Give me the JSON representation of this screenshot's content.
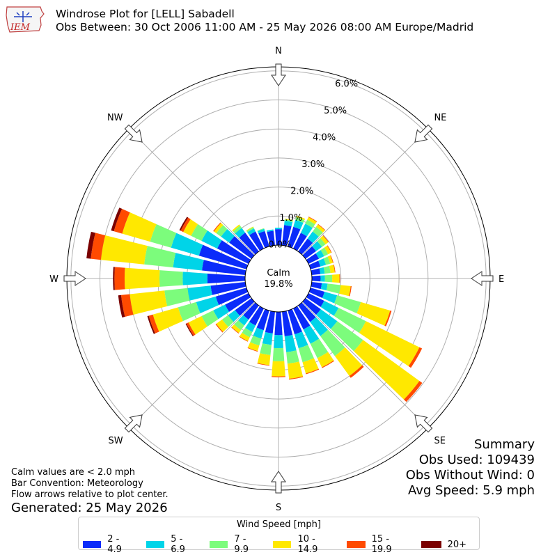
{
  "header": {
    "title_line1": "Windrose Plot for [LELL] Sabadell",
    "title_line2": "Obs Between: 30 Oct 2006 11:00 AM - 25 May 2026 08:00 AM Europe/Madrid",
    "logo_text": "IEM"
  },
  "summary": {
    "heading": "Summary",
    "obs_used": "Obs Used: 109439",
    "obs_without_wind": "Obs Without Wind: 0",
    "avg_speed": "Avg Speed: 5.9 mph"
  },
  "notes": {
    "calm_note": "Calm values are < 2.0 mph",
    "bar_convention": "Bar Convention: Meteorology",
    "flow_note": "Flow arrows relative to plot center.",
    "generated": "Generated: 25 May 2026"
  },
  "colors": {
    "bins": [
      "#0a2bfa",
      "#00d4e8",
      "#7cfc7c",
      "#ffe800",
      "#ff4a00",
      "#7a0000"
    ]
  },
  "chart_data": {
    "type": "windrose",
    "center_label": "Calm",
    "calm_percent": "19.8%",
    "directions": [
      "N",
      "NE",
      "E",
      "SE",
      "S",
      "SW",
      "W",
      "NW"
    ],
    "ring_labels": [
      "0.0%",
      "1.0%",
      "2.0%",
      "3.0%",
      "4.0%",
      "5.0%",
      "6.0%"
    ],
    "r_max_percent": 6.0,
    "legend_title": "Wind Speed [mph]",
    "speed_bins": [
      "2 - 4.9",
      "5 - 6.9",
      "7 - 9.9",
      "10 - 14.9",
      "15 - 19.9",
      "20+"
    ],
    "sectors": [
      {
        "dir_deg": 0,
        "values": [
          0.55,
          0.05,
          0.0,
          0.0,
          0.0,
          0.0
        ]
      },
      {
        "dir_deg": 10,
        "values": [
          0.7,
          0.15,
          0.05,
          0.02,
          0.0,
          0.0
        ]
      },
      {
        "dir_deg": 20,
        "values": [
          0.7,
          0.25,
          0.1,
          0.05,
          0.0,
          0.0
        ]
      },
      {
        "dir_deg": 30,
        "values": [
          0.6,
          0.35,
          0.15,
          0.1,
          0.02,
          0.0
        ]
      },
      {
        "dir_deg": 40,
        "values": [
          0.55,
          0.3,
          0.2,
          0.1,
          0.02,
          0.0
        ]
      },
      {
        "dir_deg": 50,
        "values": [
          0.45,
          0.25,
          0.15,
          0.12,
          0.02,
          0.0
        ]
      },
      {
        "dir_deg": 60,
        "values": [
          0.4,
          0.2,
          0.15,
          0.12,
          0.02,
          0.0
        ]
      },
      {
        "dir_deg": 70,
        "values": [
          0.35,
          0.2,
          0.15,
          0.1,
          0.02,
          0.0
        ]
      },
      {
        "dir_deg": 80,
        "values": [
          0.3,
          0.15,
          0.2,
          0.15,
          0.02,
          0.0
        ]
      },
      {
        "dir_deg": 90,
        "values": [
          0.3,
          0.15,
          0.25,
          0.25,
          0.02,
          0.0
        ]
      },
      {
        "dir_deg": 100,
        "values": [
          0.35,
          0.2,
          0.45,
          0.35,
          0.03,
          0.0
        ]
      },
      {
        "dir_deg": 110,
        "values": [
          0.5,
          0.45,
          0.85,
          1.05,
          0.05,
          0.0
        ]
      },
      {
        "dir_deg": 120,
        "values": [
          0.6,
          0.55,
          1.05,
          2.05,
          0.1,
          0.0
        ]
      },
      {
        "dir_deg": 130,
        "values": [
          0.65,
          0.7,
          1.1,
          2.4,
          0.12,
          0.0
        ]
      },
      {
        "dir_deg": 140,
        "values": [
          0.7,
          0.6,
          0.85,
          0.85,
          0.08,
          0.0
        ]
      },
      {
        "dir_deg": 150,
        "values": [
          0.8,
          0.55,
          0.55,
          0.35,
          0.03,
          0.0
        ]
      },
      {
        "dir_deg": 160,
        "values": [
          0.85,
          0.5,
          0.5,
          0.4,
          0.03,
          0.0
        ]
      },
      {
        "dir_deg": 170,
        "values": [
          0.85,
          0.55,
          0.4,
          0.52,
          0.03,
          0.0
        ]
      },
      {
        "dir_deg": 180,
        "values": [
          0.8,
          0.45,
          0.45,
          0.52,
          0.03,
          0.0
        ]
      },
      {
        "dir_deg": 190,
        "values": [
          0.75,
          0.4,
          0.35,
          0.35,
          0.02,
          0.0
        ]
      },
      {
        "dir_deg": 200,
        "values": [
          0.7,
          0.3,
          0.25,
          0.2,
          0.02,
          0.0
        ]
      },
      {
        "dir_deg": 210,
        "values": [
          0.65,
          0.25,
          0.2,
          0.15,
          0.02,
          0.0
        ]
      },
      {
        "dir_deg": 220,
        "values": [
          0.6,
          0.25,
          0.2,
          0.12,
          0.02,
          0.0
        ]
      },
      {
        "dir_deg": 230,
        "values": [
          0.7,
          0.3,
          0.25,
          0.25,
          0.03,
          0.0
        ]
      },
      {
        "dir_deg": 240,
        "values": [
          0.9,
          0.45,
          0.45,
          0.5,
          0.08,
          0.03
        ]
      },
      {
        "dir_deg": 250,
        "values": [
          1.1,
          0.7,
          0.65,
          0.9,
          0.15,
          0.05
        ]
      },
      {
        "dir_deg": 260,
        "values": [
          1.2,
          0.8,
          0.8,
          1.2,
          0.3,
          0.1
        ]
      },
      {
        "dir_deg": 270,
        "values": [
          1.3,
          0.85,
          0.8,
          1.2,
          0.35,
          0.05
        ]
      },
      {
        "dir_deg": 280,
        "values": [
          1.5,
          1.0,
          1.0,
          1.5,
          0.35,
          0.15
        ]
      },
      {
        "dir_deg": 290,
        "values": [
          1.7,
          1.0,
          0.75,
          1.0,
          0.3,
          0.1
        ]
      },
      {
        "dir_deg": 300,
        "values": [
          1.2,
          0.6,
          0.4,
          0.3,
          0.1,
          0.05
        ]
      },
      {
        "dir_deg": 310,
        "values": [
          0.95,
          0.35,
          0.2,
          0.1,
          0.03,
          0.0
        ]
      },
      {
        "dir_deg": 320,
        "values": [
          0.8,
          0.2,
          0.1,
          0.05,
          0.0,
          0.0
        ]
      },
      {
        "dir_deg": 330,
        "values": [
          0.65,
          0.12,
          0.05,
          0.02,
          0.0,
          0.0
        ]
      },
      {
        "dir_deg": 340,
        "values": [
          0.55,
          0.08,
          0.02,
          0.0,
          0.0,
          0.0
        ]
      },
      {
        "dir_deg": 350,
        "values": [
          0.5,
          0.05,
          0.0,
          0.0,
          0.0,
          0.0
        ]
      }
    ]
  }
}
